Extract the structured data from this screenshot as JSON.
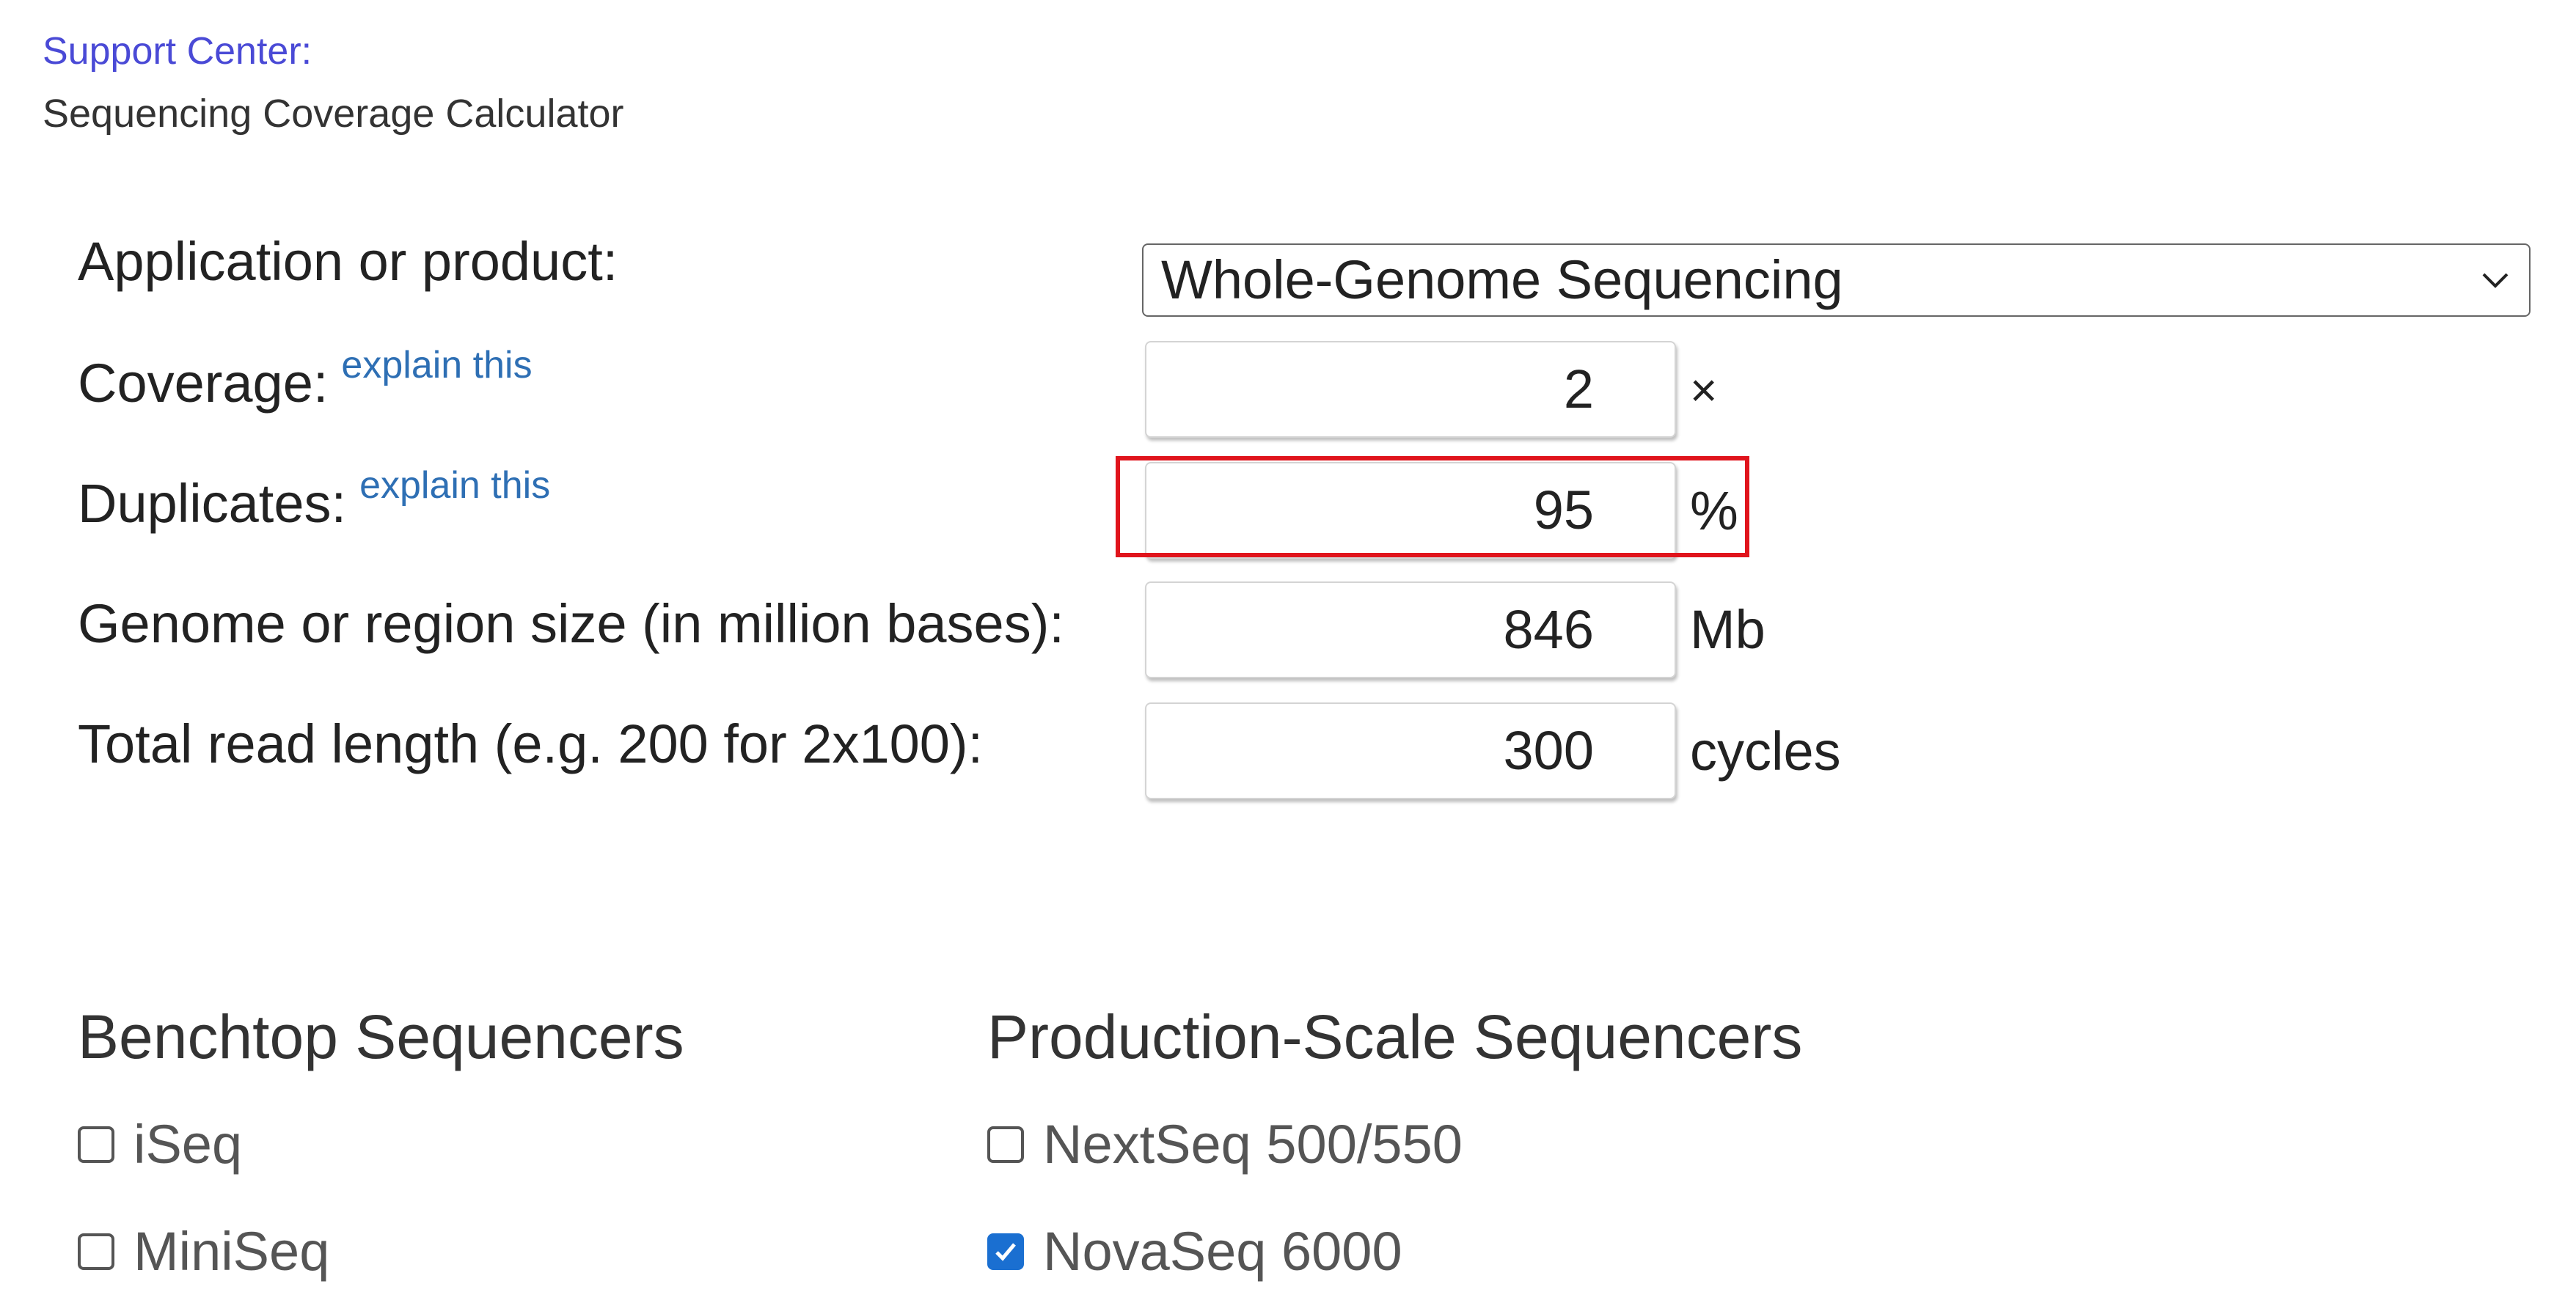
{
  "breadcrumb": {
    "link": "Support Center:",
    "title": "Sequencing Coverage Calculator"
  },
  "form": {
    "application": {
      "label": "Application or product:",
      "value": "Whole-Genome Sequencing"
    },
    "coverage": {
      "label": "Coverage:",
      "explain": "explain this",
      "value": "2",
      "unit": "×"
    },
    "duplicates": {
      "label": "Duplicates:",
      "explain": "explain this",
      "value": "95",
      "unit": "%"
    },
    "genome_size": {
      "label": "Genome or region size (in million bases):",
      "value": "846",
      "unit": "Mb"
    },
    "read_length": {
      "label": "Total read length (e.g. 200 for 2x100):",
      "value": "300",
      "unit": "cycles"
    }
  },
  "sequencers": {
    "benchtop": {
      "title": "Benchtop Sequencers",
      "items": [
        {
          "label": "iSeq",
          "checked": false
        },
        {
          "label": "MiniSeq",
          "checked": false
        }
      ]
    },
    "production": {
      "title": "Production-Scale Sequencers",
      "items": [
        {
          "label": "NextSeq 500/550",
          "checked": false
        },
        {
          "label": "NovaSeq 6000",
          "checked": true
        }
      ]
    }
  },
  "colors": {
    "link": "#4a4ad6",
    "explain": "#2e6fb4",
    "highlight": "#e0141c",
    "checkbox_checked": "#1a6fd1"
  },
  "icons": {
    "select_arrow": "chevron-down-icon",
    "checkmark": "checkmark-icon"
  }
}
